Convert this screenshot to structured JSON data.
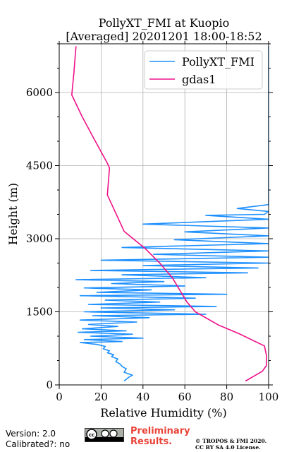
{
  "chart_data": {
    "type": "line",
    "title": "PollyXT_FMI at Kuopio",
    "subtitle": "[Averaged] 20201201 18:00-18:52",
    "xlabel": "Relative Humidity (%)",
    "ylabel": "Height (m)",
    "xlim": [
      0,
      100
    ],
    "ylim": [
      0,
      7000
    ],
    "xticks": [
      0,
      20,
      40,
      60,
      80,
      100
    ],
    "yticks": [
      0,
      1500,
      3000,
      4500,
      6000
    ],
    "grid": true,
    "legend_position": "top-right",
    "series": [
      {
        "name": "PollyXT_FMI",
        "color": "#1e90ff",
        "description_of_shape": "noisy profile",
        "points": [
          [
            31,
            80
          ],
          [
            33,
            150
          ],
          [
            35,
            200
          ],
          [
            31,
            260
          ],
          [
            32,
            330
          ],
          [
            30,
            380
          ],
          [
            29,
            430
          ],
          [
            27,
            480
          ],
          [
            28,
            530
          ],
          [
            25,
            580
          ],
          [
            26,
            620
          ],
          [
            23,
            660
          ],
          [
            24,
            700
          ],
          [
            21,
            740
          ],
          [
            22,
            790
          ],
          [
            18,
            830
          ],
          [
            10,
            870
          ],
          [
            30,
            890
          ],
          [
            12,
            930
          ],
          [
            40,
            960
          ],
          [
            15,
            1000
          ],
          [
            35,
            1040
          ],
          [
            9,
            1080
          ],
          [
            32,
            1110
          ],
          [
            11,
            1150
          ],
          [
            28,
            1200
          ],
          [
            14,
            1240
          ],
          [
            37,
            1290
          ],
          [
            10,
            1330
          ],
          [
            43,
            1380
          ],
          [
            16,
            1420
          ],
          [
            70,
            1450
          ],
          [
            12,
            1500
          ],
          [
            55,
            1540
          ],
          [
            20,
            1580
          ],
          [
            75,
            1610
          ],
          [
            14,
            1650
          ],
          [
            48,
            1700
          ],
          [
            22,
            1740
          ],
          [
            65,
            1780
          ],
          [
            10,
            1830
          ],
          [
            80,
            1860
          ],
          [
            18,
            1900
          ],
          [
            44,
            1950
          ],
          [
            12,
            1990
          ],
          [
            60,
            2030
          ],
          [
            25,
            2080
          ],
          [
            50,
            2120
          ],
          [
            8,
            2160
          ],
          [
            70,
            2200
          ],
          [
            30,
            2260
          ],
          [
            90,
            2300
          ],
          [
            15,
            2350
          ],
          [
            95,
            2400
          ],
          [
            40,
            2450
          ],
          [
            100,
            2500
          ],
          [
            20,
            2560
          ],
          [
            100,
            2620
          ],
          [
            45,
            2680
          ],
          [
            100,
            2750
          ],
          [
            30,
            2820
          ],
          [
            100,
            2900
          ],
          [
            55,
            2980
          ],
          [
            100,
            3060
          ],
          [
            60,
            3140
          ],
          [
            100,
            3220
          ],
          [
            40,
            3300
          ],
          [
            100,
            3400
          ],
          [
            70,
            3480
          ],
          [
            98,
            3500
          ],
          [
            100,
            3560
          ],
          [
            85,
            3620
          ],
          [
            100,
            3700
          ],
          [
            100,
            3900
          ],
          [
            100,
            4200
          ],
          [
            100,
            4500
          ],
          [
            100,
            4800
          ],
          [
            100,
            5100
          ],
          [
            100,
            5400
          ],
          [
            100,
            5700
          ],
          [
            100,
            6000
          ],
          [
            100,
            6300
          ],
          [
            100,
            6600
          ],
          [
            100,
            6950
          ]
        ]
      },
      {
        "name": "gdas1",
        "color": "#ee1188",
        "points": [
          [
            89,
            80
          ],
          [
            93,
            180
          ],
          [
            97,
            280
          ],
          [
            99,
            400
          ],
          [
            99,
            600
          ],
          [
            98,
            800
          ],
          [
            86,
            1050
          ],
          [
            76,
            1230
          ],
          [
            65,
            1500
          ],
          [
            61,
            1700
          ],
          [
            54,
            2200
          ],
          [
            48,
            2500
          ],
          [
            41,
            2800
          ],
          [
            31,
            3150
          ],
          [
            23,
            3900
          ],
          [
            24,
            4450
          ],
          [
            23,
            4550
          ],
          [
            16,
            5100
          ],
          [
            11,
            5500
          ],
          [
            6,
            5950
          ],
          [
            7,
            6400
          ],
          [
            8,
            6950
          ]
        ]
      }
    ]
  },
  "footer": {
    "version": "Version: 2.0",
    "calibrated": "Calibrated?: no",
    "cc_logo": "cc-by-sa-icon",
    "preliminary_line1": "Preliminary",
    "preliminary_line2": "Results.",
    "copyright_line1": "© TROPOS & FMI 2020.",
    "copyright_line2": "CC BY SA 4.0 License."
  }
}
